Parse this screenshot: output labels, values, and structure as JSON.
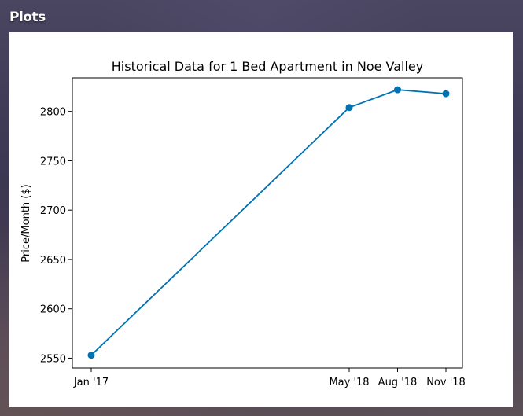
{
  "panel": {
    "title": "Plots"
  },
  "chart_data": {
    "type": "line",
    "title": "Historical Data for 1 Bed Apartment in Noe Valley",
    "xlabel": "",
    "ylabel": "Price/Month ($)",
    "x_dates": [
      "2017-01",
      "2018-05",
      "2018-08",
      "2018-11"
    ],
    "x_tick_labels": [
      "Jan '17",
      "May '18",
      "Aug '18",
      "Nov '18"
    ],
    "y_ticks": [
      2550,
      2600,
      2650,
      2700,
      2750,
      2800
    ],
    "ylim": [
      2540,
      2834
    ],
    "grid": false,
    "legend": "none",
    "line_color": "#0072b2",
    "series": [
      {
        "values": [
          2553,
          2804,
          2822,
          2818
        ]
      }
    ]
  }
}
